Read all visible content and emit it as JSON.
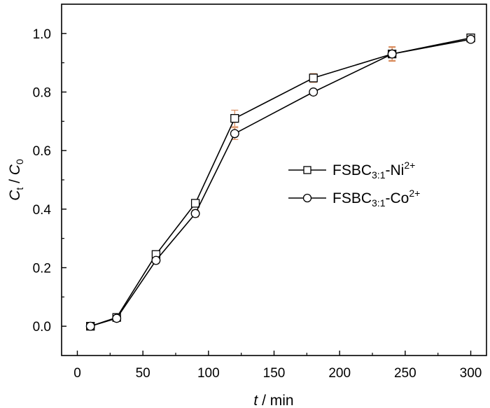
{
  "chart_data": {
    "type": "line",
    "title": "",
    "xlabel": {
      "italic": "t",
      "rest": " / min"
    },
    "ylabel": {
      "c1": "C",
      "c1_sub": "t",
      "sep": " / ",
      "c2": "C",
      "c2_sub": "0"
    },
    "xlim": [
      -12,
      312
    ],
    "ylim": [
      -0.1,
      1.1
    ],
    "xticks": [
      0,
      50,
      100,
      150,
      200,
      250,
      300
    ],
    "yticks": [
      0.0,
      0.2,
      0.4,
      0.6,
      0.8,
      1.0
    ],
    "ytick_labels": [
      "0.0",
      "0.2",
      "0.4",
      "0.6",
      "0.8",
      "1.0"
    ],
    "grid": false,
    "legend_position": "center-right",
    "colors": {
      "line": "#000000",
      "error_bar": "#d98a5a",
      "marker_fill": "#ffffff"
    },
    "series": [
      {
        "name": {
          "base": "FSBC",
          "sub": "3:1",
          "ion": "-Ni",
          "sup": "2+"
        },
        "marker": "square",
        "x": [
          10,
          30,
          60,
          90,
          120,
          180,
          240,
          300
        ],
        "y": [
          0.0,
          0.03,
          0.245,
          0.42,
          0.71,
          0.848,
          0.93,
          0.985
        ],
        "yerr": [
          0.005,
          0.008,
          0.01,
          0.012,
          0.028,
          0.015,
          0.025,
          0.012
        ]
      },
      {
        "name": {
          "base": "FSBC",
          "sub": "3:1",
          "ion": "-Co",
          "sup": "2+"
        },
        "marker": "circle",
        "x": [
          10,
          30,
          60,
          90,
          120,
          180,
          240,
          300
        ],
        "y": [
          0.0,
          0.027,
          0.225,
          0.385,
          0.658,
          0.8,
          0.93,
          0.98
        ],
        "yerr": [
          0.005,
          0.008,
          0.01,
          0.012,
          0.02,
          0.01,
          0.022,
          0.01
        ]
      }
    ]
  }
}
